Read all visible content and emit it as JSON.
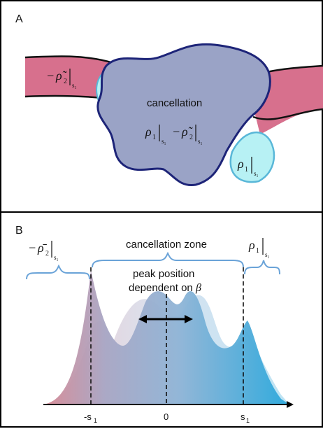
{
  "panel_a": {
    "letter": "A",
    "labels": {
      "cancellation": "cancellation",
      "rho1": "ρ",
      "rho1_sub": "1",
      "minus": "−",
      "rho2_tilde": "ρ̃",
      "rho2_sub": "2",
      "s1": "s₁"
    }
  },
  "panel_b": {
    "letter": "B",
    "labels": {
      "cancellation_zone": "cancellation zone",
      "peak_line1": "peak position",
      "peak_line2": "dependent on",
      "beta": "β",
      "rho2_bar": "ρ̄",
      "rho1": "ρ",
      "sub2": "2",
      "sub1": "1",
      "minus": "−",
      "s1": "s₁"
    },
    "axis_ticks": [
      "-s",
      "0",
      "s"
    ],
    "tick_sub": "1"
  },
  "colors": {
    "pink": "#d7708d",
    "lavender": "#9aa3c6",
    "cyan": "#b7f1f4",
    "navy": "#1d2478",
    "blue_bracket": "#6aa3d8",
    "curve_blue": "#2aa8dc"
  }
}
